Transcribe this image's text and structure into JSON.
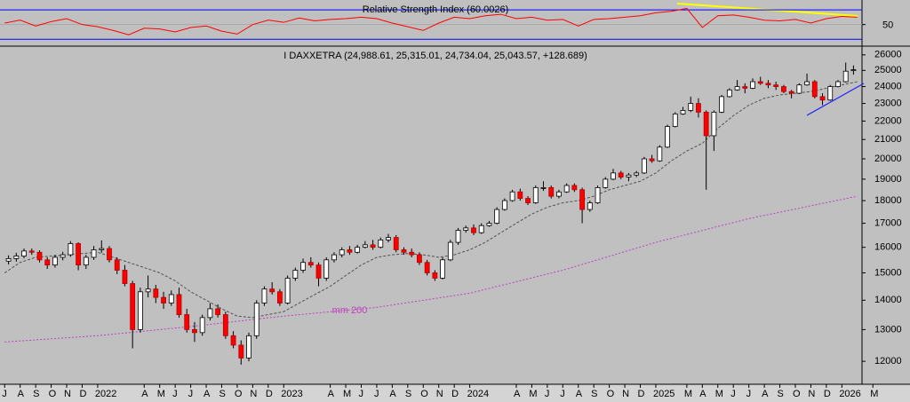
{
  "chart_data": [
    {
      "type": "line",
      "title": "Relative Strength Index (60.0026)",
      "color": "#ff0000",
      "levels": [
        30,
        70
      ],
      "level_color": "#0000ff",
      "xlim": [
        -0.3,
        55.3
      ],
      "ylim": [
        23,
        81
      ],
      "yticks": [
        50
      ],
      "x": [
        0,
        1,
        2,
        3,
        4,
        5,
        6,
        7,
        8,
        9,
        10,
        11,
        12,
        13,
        14,
        15,
        16,
        17,
        18,
        19,
        20,
        21,
        22,
        23,
        24,
        25,
        26,
        27,
        28,
        29,
        30,
        31,
        32,
        33,
        34,
        35,
        36,
        37,
        38,
        39,
        40,
        41,
        42,
        43,
        44,
        45,
        46,
        47,
        48,
        49,
        50,
        51,
        52,
        53,
        54,
        55
      ],
      "values": [
        52,
        56,
        48,
        54,
        58,
        50,
        47,
        42,
        36,
        45,
        44,
        40,
        46,
        48,
        41,
        37,
        50,
        56,
        53,
        59,
        55,
        57,
        58,
        60,
        58,
        52,
        47,
        42,
        52,
        60,
        58,
        62,
        64,
        58,
        60,
        56,
        57,
        48,
        57,
        58,
        60,
        62,
        66,
        68,
        72,
        46,
        62,
        63,
        60,
        56,
        55,
        57,
        52,
        58,
        61,
        60.0026
      ]
    },
    {
      "type": "candlestick",
      "title": "I DAXXETRA (24,988.61, 25,315.01, 24,734.04, 25,043.57, +128.689)",
      "up_color": "#ffffff",
      "down_color": "#ff0000",
      "log_scale": true,
      "xlim": [
        -0.3,
        55.3
      ],
      "ylim": [
        11350,
        26400
      ],
      "yticks": [
        12000,
        13000,
        14000,
        15000,
        16000,
        17000,
        18000,
        19000,
        20000,
        21000,
        22000,
        23000,
        24000,
        25000,
        26000
      ],
      "xticks": [
        {
          "value": 0,
          "label": "J"
        },
        {
          "value": 1,
          "label": "A"
        },
        {
          "value": 2,
          "label": "S"
        },
        {
          "value": 3,
          "label": "O"
        },
        {
          "value": 4,
          "label": "N"
        },
        {
          "value": 5,
          "label": "D"
        },
        {
          "value": 6,
          "label": "2022"
        },
        {
          "value": 9,
          "label": "A"
        },
        {
          "value": 10,
          "label": "M"
        },
        {
          "value": 11,
          "label": "J"
        },
        {
          "value": 12,
          "label": "J"
        },
        {
          "value": 13,
          "label": "A"
        },
        {
          "value": 14,
          "label": "S"
        },
        {
          "value": 15,
          "label": "O"
        },
        {
          "value": 16,
          "label": "N"
        },
        {
          "value": 17,
          "label": "D"
        },
        {
          "value": 18,
          "label": "2023"
        },
        {
          "value": 21,
          "label": "A"
        },
        {
          "value": 22,
          "label": "M"
        },
        {
          "value": 23,
          "label": "J"
        },
        {
          "value": 24,
          "label": "J"
        },
        {
          "value": 25,
          "label": "A"
        },
        {
          "value": 26,
          "label": "S"
        },
        {
          "value": 27,
          "label": "O"
        },
        {
          "value": 28,
          "label": "N"
        },
        {
          "value": 29,
          "label": "D"
        },
        {
          "value": 30,
          "label": "2024"
        },
        {
          "value": 33,
          "label": "A"
        },
        {
          "value": 34,
          "label": "M"
        },
        {
          "value": 35,
          "label": "J"
        },
        {
          "value": 36,
          "label": "J"
        },
        {
          "value": 37,
          "label": "A"
        },
        {
          "value": 38,
          "label": "S"
        },
        {
          "value": 39,
          "label": "O"
        },
        {
          "value": 40,
          "label": "N"
        },
        {
          "value": 41,
          "label": "D"
        },
        {
          "value": 42,
          "label": "2025"
        },
        {
          "value": 44,
          "label": "M"
        },
        {
          "value": 45,
          "label": "A"
        },
        {
          "value": 46,
          "label": "M"
        },
        {
          "value": 47,
          "label": "J"
        },
        {
          "value": 48,
          "label": "J"
        },
        {
          "value": 49,
          "label": "A"
        },
        {
          "value": 50,
          "label": "S"
        },
        {
          "value": 51,
          "label": "O"
        },
        {
          "value": 52,
          "label": "N"
        },
        {
          "value": 53,
          "label": "D"
        },
        {
          "value": 54,
          "label": "2026"
        },
        {
          "value": 56,
          "label": "M"
        }
      ],
      "x": [
        0.25,
        0.75,
        1.25,
        1.75,
        2.25,
        2.75,
        3.25,
        3.75,
        4.25,
        4.75,
        5.25,
        5.75,
        6.25,
        6.75,
        7.25,
        7.75,
        8.25,
        8.75,
        9.25,
        9.75,
        10.25,
        10.75,
        11.25,
        11.75,
        12.25,
        12.75,
        13.25,
        13.75,
        14.25,
        14.75,
        15.25,
        15.75,
        16.25,
        16.75,
        17.25,
        17.75,
        18.25,
        18.75,
        19.25,
        19.75,
        20.25,
        20.75,
        21.25,
        21.75,
        22.25,
        22.75,
        23.25,
        23.75,
        24.25,
        24.75,
        25.25,
        25.75,
        26.25,
        26.75,
        27.25,
        27.75,
        28.25,
        28.75,
        29.25,
        29.75,
        30.25,
        30.75,
        31.25,
        31.75,
        32.25,
        32.75,
        33.25,
        33.75,
        34.25,
        34.75,
        35.25,
        35.75,
        36.25,
        36.75,
        37.25,
        37.75,
        38.25,
        38.75,
        39.25,
        39.75,
        40.25,
        40.75,
        41.25,
        41.75,
        42.25,
        42.75,
        43.25,
        43.75,
        44.25,
        44.75,
        45.25,
        45.75,
        46.25,
        46.75,
        47.25,
        47.75,
        48.25,
        48.75,
        49.25,
        49.75,
        50.25,
        50.75,
        51.25,
        51.75,
        52.25,
        52.75,
        53.25,
        53.75,
        54.25,
        54.75
      ],
      "candles": [
        [
          15450,
          15680,
          15320,
          15550
        ],
        [
          15550,
          15780,
          15430,
          15650
        ],
        [
          15650,
          15950,
          15560,
          15850
        ],
        [
          15850,
          15950,
          15700,
          15800
        ],
        [
          15800,
          15880,
          15400,
          15500
        ],
        [
          15500,
          15600,
          15150,
          15300
        ],
        [
          15300,
          15700,
          15200,
          15600
        ],
        [
          15600,
          15820,
          15480,
          15700
        ],
        [
          15700,
          16250,
          15620,
          16150
        ],
        [
          16150,
          16200,
          15100,
          15300
        ],
        [
          15300,
          15700,
          15150,
          15600
        ],
        [
          15600,
          16050,
          15500,
          15900
        ],
        [
          15900,
          16280,
          15780,
          15950
        ],
        [
          15950,
          16050,
          15400,
          15500
        ],
        [
          15500,
          15600,
          14950,
          15100
        ],
        [
          15100,
          15300,
          14500,
          14600
        ],
        [
          14600,
          14700,
          12400,
          13000
        ],
        [
          13000,
          14450,
          12900,
          14300
        ],
        [
          14300,
          14900,
          14100,
          14400
        ],
        [
          14400,
          14550,
          13900,
          14100
        ],
        [
          14100,
          14300,
          13700,
          13900
        ],
        [
          13900,
          14350,
          13800,
          14200
        ],
        [
          14200,
          14450,
          13400,
          13500
        ],
        [
          13500,
          13700,
          12900,
          13000
        ],
        [
          13000,
          13250,
          12600,
          12900
        ],
        [
          12900,
          13500,
          12800,
          13400
        ],
        [
          13400,
          13900,
          13300,
          13700
        ],
        [
          13700,
          13850,
          13400,
          13500
        ],
        [
          13500,
          13600,
          12700,
          12800
        ],
        [
          12800,
          12950,
          12400,
          12500
        ],
        [
          12500,
          12650,
          11900,
          12100
        ],
        [
          12100,
          12900,
          12000,
          12800
        ],
        [
          12800,
          14000,
          12700,
          13900
        ],
        [
          13900,
          14500,
          13800,
          14400
        ],
        [
          14400,
          14650,
          14200,
          14300
        ],
        [
          14300,
          14400,
          13800,
          13900
        ],
        [
          13900,
          14900,
          13850,
          14800
        ],
        [
          14800,
          15200,
          14700,
          15100
        ],
        [
          15100,
          15550,
          15000,
          15400
        ],
        [
          15400,
          15600,
          15200,
          15300
        ],
        [
          15300,
          15400,
          14500,
          14800
        ],
        [
          14800,
          15600,
          14700,
          15500
        ],
        [
          15500,
          15800,
          15400,
          15700
        ],
        [
          15700,
          16000,
          15600,
          15900
        ],
        [
          15900,
          16050,
          15700,
          15800
        ],
        [
          15800,
          16100,
          15750,
          16000
        ],
        [
          16000,
          16250,
          15950,
          16100
        ],
        [
          16100,
          16300,
          15900,
          16000
        ],
        [
          16000,
          16400,
          15950,
          16300
        ],
        [
          16300,
          16550,
          16200,
          16400
        ],
        [
          16400,
          16500,
          15800,
          15900
        ],
        [
          15900,
          16000,
          15700,
          15800
        ],
        [
          15800,
          15950,
          15600,
          15700
        ],
        [
          15700,
          15800,
          15300,
          15400
        ],
        [
          15400,
          15500,
          14900,
          15000
        ],
        [
          15000,
          15100,
          14700,
          14800
        ],
        [
          14800,
          15600,
          14750,
          15500
        ],
        [
          15500,
          16300,
          15450,
          16200
        ],
        [
          16200,
          16800,
          16100,
          16700
        ],
        [
          16700,
          16900,
          16600,
          16800
        ],
        [
          16800,
          16950,
          16500,
          16600
        ],
        [
          16600,
          17000,
          16550,
          16900
        ],
        [
          16900,
          17100,
          16850,
          17000
        ],
        [
          17000,
          17700,
          16950,
          17600
        ],
        [
          17600,
          18100,
          17550,
          18000
        ],
        [
          18000,
          18500,
          17950,
          18400
        ],
        [
          18400,
          18550,
          18000,
          18100
        ],
        [
          18100,
          18200,
          17800,
          17900
        ],
        [
          17900,
          18700,
          17850,
          18600
        ],
        [
          18600,
          18900,
          18450,
          18600
        ],
        [
          18600,
          18700,
          18100,
          18200
        ],
        [
          18200,
          18500,
          18100,
          18400
        ],
        [
          18400,
          18800,
          18350,
          18700
        ],
        [
          18700,
          18800,
          18400,
          18500
        ],
        [
          18500,
          18600,
          17000,
          17600
        ],
        [
          17600,
          18000,
          17500,
          17900
        ],
        [
          17900,
          18700,
          17850,
          18600
        ],
        [
          18600,
          19100,
          18550,
          19000
        ],
        [
          19000,
          19500,
          18950,
          19300
        ],
        [
          19300,
          19400,
          19000,
          19100
        ],
        [
          19100,
          19300,
          18900,
          19200
        ],
        [
          19200,
          19400,
          19100,
          19300
        ],
        [
          19300,
          20100,
          19250,
          20000
        ],
        [
          20000,
          20200,
          19800,
          19900
        ],
        [
          19900,
          20700,
          19850,
          20600
        ],
        [
          20600,
          21800,
          20550,
          21700
        ],
        [
          21700,
          22500,
          21650,
          22400
        ],
        [
          22400,
          22800,
          22350,
          22600
        ],
        [
          22600,
          23400,
          22500,
          23000
        ],
        [
          23000,
          23300,
          22200,
          22500
        ],
        [
          22500,
          22600,
          18500,
          21200
        ],
        [
          21200,
          22600,
          20400,
          22500
        ],
        [
          22500,
          23500,
          22450,
          23400
        ],
        [
          23400,
          23900,
          23350,
          23800
        ],
        [
          23800,
          24400,
          23750,
          24000
        ],
        [
          24000,
          24200,
          23600,
          23900
        ],
        [
          23900,
          24500,
          23850,
          24300
        ],
        [
          24300,
          24600,
          24100,
          24200
        ],
        [
          24200,
          24400,
          23900,
          24100
        ],
        [
          24100,
          24300,
          23800,
          24000
        ],
        [
          24000,
          24100,
          23600,
          23700
        ],
        [
          23700,
          23800,
          23300,
          23600
        ],
        [
          23600,
          24200,
          23550,
          24100
        ],
        [
          24100,
          24800,
          24050,
          24300
        ],
        [
          24300,
          24400,
          23300,
          23400
        ],
        [
          23400,
          23600,
          22900,
          23200
        ],
        [
          23200,
          24100,
          23150,
          24000
        ],
        [
          24000,
          24400,
          23950,
          24300
        ],
        [
          24300,
          25500,
          24250,
          24950
        ],
        [
          24988.61,
          25315.01,
          24734.04,
          25043.57
        ]
      ],
      "overlays": [
        {
          "name": "mm 200",
          "color": "#c040c0",
          "dash": "2 2",
          "x": [
            0,
            6,
            12,
            18,
            24,
            30,
            36,
            42,
            48,
            55
          ],
          "values": [
            12600,
            12800,
            13100,
            13450,
            13750,
            14250,
            15100,
            16200,
            17200,
            18200
          ]
        },
        {
          "color": "#505050",
          "dash": "3 2",
          "x": [
            0,
            1,
            2,
            3,
            4,
            5,
            6,
            7,
            8,
            9,
            10,
            11,
            12,
            13,
            14,
            15,
            16,
            17,
            18,
            19,
            20,
            21,
            22,
            23,
            24,
            25,
            26,
            27,
            28,
            29,
            30,
            31,
            32,
            33,
            34,
            35,
            36,
            37,
            38,
            39,
            40,
            41,
            42,
            43,
            44,
            45,
            46,
            47,
            48,
            49,
            50,
            51,
            52,
            53,
            54,
            55
          ],
          "values": [
            15000,
            15400,
            15600,
            15650,
            15700,
            15750,
            15800,
            15600,
            15400,
            15200,
            15000,
            14700,
            14300,
            14000,
            13700,
            13450,
            13400,
            13500,
            13600,
            13900,
            14200,
            14500,
            14900,
            15300,
            15600,
            15700,
            15750,
            15700,
            15600,
            15700,
            15900,
            16200,
            16600,
            17000,
            17400,
            17700,
            17900,
            18000,
            18200,
            18500,
            18700,
            18900,
            19300,
            19900,
            20400,
            20800,
            21600,
            22300,
            22900,
            23300,
            23500,
            23600,
            23700,
            23900,
            24100,
            24300
          ]
        }
      ]
    }
  ]
}
